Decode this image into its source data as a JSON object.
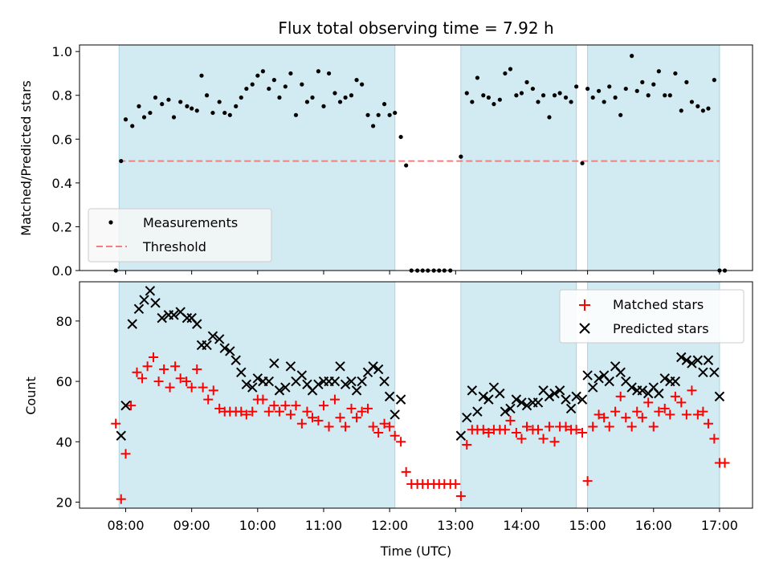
{
  "title": "Flux total observing time = 7.92 h",
  "chart_data": [
    {
      "type": "scatter",
      "panel": "top",
      "ylabel": "Matched/Predicted stars",
      "ylim": [
        0,
        1.03
      ],
      "yticks": [
        0,
        0.2,
        0.4,
        0.6,
        0.8,
        1.0
      ],
      "ytick_labels": [
        "0.0",
        "0.2",
        "0.4",
        "0.6",
        "0.8",
        "1.0"
      ],
      "xlim": [
        7.3,
        17.5
      ],
      "threshold": 0.5,
      "legend": {
        "position": "lower-left",
        "entries": [
          "Measurements",
          "Threshold"
        ]
      },
      "threshold_color": "#f08080",
      "marker_color": "#000000",
      "shaded_color": "#add8e6",
      "shaded_intervals": [
        [
          7.9,
          12.08
        ],
        [
          13.08,
          14.83
        ],
        [
          15.0,
          17.0
        ]
      ],
      "series": [
        {
          "name": "Measurements",
          "x": [
            7.85,
            7.93,
            8.0,
            8.1,
            8.2,
            8.28,
            8.37,
            8.45,
            8.55,
            8.65,
            8.73,
            8.83,
            8.93,
            9.0,
            9.08,
            9.15,
            9.23,
            9.32,
            9.42,
            9.5,
            9.58,
            9.67,
            9.75,
            9.83,
            9.92,
            10.0,
            10.08,
            10.17,
            10.25,
            10.33,
            10.42,
            10.5,
            10.58,
            10.67,
            10.75,
            10.83,
            10.92,
            11.0,
            11.08,
            11.17,
            11.25,
            11.33,
            11.42,
            11.5,
            11.58,
            11.67,
            11.75,
            11.83,
            11.92,
            12.0,
            12.08,
            12.17,
            12.25,
            12.33,
            12.42,
            12.5,
            12.58,
            12.67,
            12.75,
            12.83,
            12.92,
            13.08,
            13.17,
            13.25,
            13.33,
            13.42,
            13.5,
            13.58,
            13.67,
            13.75,
            13.83,
            13.92,
            14.0,
            14.08,
            14.17,
            14.25,
            14.33,
            14.42,
            14.5,
            14.58,
            14.67,
            14.75,
            14.83,
            14.92,
            15.0,
            15.08,
            15.17,
            15.25,
            15.33,
            15.42,
            15.5,
            15.58,
            15.67,
            15.75,
            15.83,
            15.92,
            16.0,
            16.08,
            16.17,
            16.25,
            16.33,
            16.42,
            16.5,
            16.58,
            16.67,
            16.75,
            16.83,
            16.92,
            17.0,
            17.08
          ],
          "y": [
            0.0,
            0.5,
            0.69,
            0.66,
            0.75,
            0.7,
            0.72,
            0.79,
            0.76,
            0.78,
            0.7,
            0.77,
            0.75,
            0.74,
            0.73,
            0.89,
            0.8,
            0.72,
            0.77,
            0.72,
            0.71,
            0.75,
            0.79,
            0.83,
            0.85,
            0.89,
            0.91,
            0.83,
            0.87,
            0.79,
            0.84,
            0.9,
            0.71,
            0.85,
            0.77,
            0.79,
            0.91,
            0.75,
            0.9,
            0.81,
            0.77,
            0.79,
            0.8,
            0.87,
            0.85,
            0.71,
            0.66,
            0.71,
            0.76,
            0.71,
            0.72,
            0.61,
            0.48,
            0.0,
            0.0,
            0.0,
            0.0,
            0.0,
            0.0,
            0.0,
            0.0,
            0.52,
            0.81,
            0.77,
            0.88,
            0.8,
            0.79,
            0.76,
            0.78,
            0.9,
            0.92,
            0.8,
            0.81,
            0.86,
            0.83,
            0.77,
            0.8,
            0.7,
            0.8,
            0.81,
            0.79,
            0.77,
            0.84,
            0.49,
            0.83,
            0.79,
            0.82,
            0.77,
            0.84,
            0.79,
            0.71,
            0.83,
            0.98,
            0.82,
            0.86,
            0.8,
            0.85,
            0.91,
            0.8,
            0.8,
            0.9,
            0.73,
            0.86,
            0.77,
            0.75,
            0.73,
            0.74,
            0.87,
            0.0,
            0.0
          ]
        }
      ]
    },
    {
      "type": "scatter",
      "panel": "bottom",
      "ylabel": "Count",
      "xlabel": "Time (UTC)",
      "ylim": [
        18,
        93
      ],
      "yticks": [
        20,
        40,
        60,
        80
      ],
      "ytick_labels": [
        "20",
        "40",
        "60",
        "80"
      ],
      "xlim": [
        7.3,
        17.5
      ],
      "xticks": [
        8,
        9,
        10,
        11,
        12,
        13,
        14,
        15,
        16,
        17
      ],
      "xtick_labels": [
        "08:00",
        "09:00",
        "10:00",
        "11:00",
        "12:00",
        "13:00",
        "14:00",
        "15:00",
        "16:00",
        "17:00"
      ],
      "legend": {
        "position": "upper-right",
        "entries": [
          "Matched stars",
          "Predicted stars"
        ]
      },
      "shaded_color": "#add8e6",
      "shaded_intervals": [
        [
          7.9,
          12.08
        ],
        [
          13.08,
          14.83
        ],
        [
          15.0,
          17.0
        ]
      ],
      "series": [
        {
          "name": "Matched stars",
          "marker": "plus",
          "color": "#ff0000",
          "x": [
            7.85,
            7.93,
            8.0,
            8.08,
            8.17,
            8.25,
            8.33,
            8.42,
            8.5,
            8.58,
            8.67,
            8.75,
            8.83,
            8.92,
            9.0,
            9.08,
            9.17,
            9.25,
            9.33,
            9.42,
            9.5,
            9.58,
            9.67,
            9.75,
            9.83,
            9.92,
            10.0,
            10.08,
            10.17,
            10.25,
            10.33,
            10.42,
            10.5,
            10.58,
            10.67,
            10.75,
            10.83,
            10.92,
            11.0,
            11.08,
            11.17,
            11.25,
            11.33,
            11.42,
            11.5,
            11.58,
            11.67,
            11.75,
            11.83,
            11.92,
            12.0,
            12.08,
            12.17,
            12.25,
            12.33,
            12.42,
            12.5,
            12.58,
            12.67,
            12.75,
            12.83,
            12.92,
            13.0,
            13.08,
            13.17,
            13.25,
            13.33,
            13.42,
            13.5,
            13.58,
            13.67,
            13.75,
            13.83,
            13.92,
            14.0,
            14.08,
            14.17,
            14.25,
            14.33,
            14.42,
            14.5,
            14.58,
            14.67,
            14.75,
            14.83,
            14.92,
            15.0,
            15.08,
            15.17,
            15.25,
            15.33,
            15.42,
            15.5,
            15.58,
            15.67,
            15.75,
            15.83,
            15.92,
            16.0,
            16.08,
            16.17,
            16.25,
            16.33,
            16.42,
            16.5,
            16.58,
            16.67,
            16.75,
            16.83,
            16.92,
            17.0,
            17.08
          ],
          "y": [
            46,
            21,
            36,
            52,
            63,
            61,
            65,
            68,
            60,
            64,
            58,
            65,
            61,
            60,
            58,
            64,
            58,
            54,
            57,
            51,
            50,
            50,
            50,
            50,
            49,
            50,
            54,
            54,
            50,
            52,
            50,
            52,
            49,
            52,
            46,
            50,
            48,
            47,
            52,
            45,
            54,
            48,
            45,
            51,
            48,
            50,
            51,
            45,
            43,
            46,
            45,
            42,
            40,
            30,
            26,
            26,
            26,
            26,
            26,
            26,
            26,
            26,
            26,
            22,
            39,
            44,
            44,
            44,
            43,
            44,
            44,
            44,
            47,
            43,
            41,
            45,
            44,
            44,
            41,
            45,
            40,
            45,
            45,
            44,
            44,
            43,
            27,
            45,
            49,
            48,
            45,
            50,
            55,
            48,
            45,
            50,
            48,
            53,
            45,
            50,
            51,
            49,
            55,
            53,
            49,
            57,
            49,
            50,
            46,
            41,
            33,
            33
          ],
          "xs_note": ""
        },
        {
          "name": "Predicted stars",
          "marker": "x",
          "color": "#000000",
          "x": [
            7.93,
            8.0,
            8.1,
            8.2,
            8.28,
            8.37,
            8.45,
            8.55,
            8.65,
            8.73,
            8.83,
            8.93,
            9.0,
            9.08,
            9.15,
            9.23,
            9.32,
            9.42,
            9.5,
            9.58,
            9.67,
            9.75,
            9.83,
            9.92,
            10.0,
            10.08,
            10.17,
            10.25,
            10.33,
            10.42,
            10.5,
            10.58,
            10.67,
            10.75,
            10.83,
            10.92,
            11.0,
            11.08,
            11.17,
            11.25,
            11.33,
            11.42,
            11.5,
            11.58,
            11.67,
            11.75,
            11.83,
            11.92,
            12.0,
            12.08,
            12.17,
            13.08,
            13.17,
            13.25,
            13.33,
            13.42,
            13.5,
            13.58,
            13.67,
            13.75,
            13.83,
            13.92,
            14.0,
            14.08,
            14.17,
            14.25,
            14.33,
            14.42,
            14.5,
            14.58,
            14.67,
            14.75,
            14.83,
            14.92,
            15.0,
            15.08,
            15.17,
            15.25,
            15.33,
            15.42,
            15.5,
            15.58,
            15.67,
            15.75,
            15.83,
            15.92,
            16.0,
            16.08,
            16.17,
            16.25,
            16.33,
            16.42,
            16.5,
            16.58,
            16.67,
            16.75,
            16.83,
            16.92,
            17.0
          ],
          "y": [
            42,
            52,
            79,
            84,
            87,
            90,
            86,
            81,
            82,
            82,
            83,
            81,
            81,
            79,
            72,
            72,
            75,
            74,
            71,
            70,
            67,
            63,
            59,
            58,
            61,
            60,
            60,
            66,
            57,
            58,
            65,
            60,
            62,
            59,
            57,
            59,
            60,
            60,
            60,
            65,
            59,
            60,
            57,
            60,
            63,
            65,
            64,
            60,
            55,
            49,
            54,
            42,
            48,
            57,
            50,
            55,
            54,
            58,
            56,
            50,
            51,
            54,
            53,
            52,
            53,
            53,
            57,
            55,
            56,
            57,
            54,
            51,
            55,
            54,
            62,
            58,
            61,
            62,
            60,
            65,
            63,
            60,
            58,
            57,
            57,
            56,
            58,
            56,
            61,
            60,
            60,
            68,
            67,
            66,
            67,
            63,
            67,
            63,
            55
          ]
        }
      ]
    }
  ]
}
